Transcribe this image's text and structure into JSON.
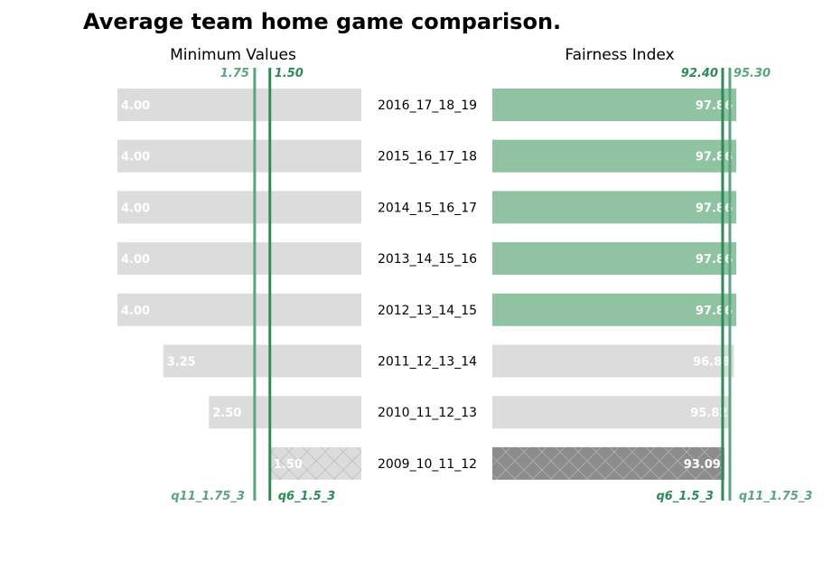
{
  "chart_data": {
    "type": "bar",
    "title": "Average team home game comparison.",
    "categories": [
      "2016_17_18_19",
      "2015_16_17_18",
      "2014_15_16_17",
      "2013_14_15_16",
      "2012_13_14_15",
      "2011_12_13_14",
      "2010_11_12_13",
      "2009_10_11_12"
    ],
    "panels": [
      {
        "subtitle": "Minimum Values",
        "direction": "right-to-left",
        "xlim": [
          0,
          5.3
        ],
        "values": [
          4.0,
          4.0,
          4.0,
          4.0,
          4.0,
          3.25,
          2.5,
          1.5
        ],
        "labels": [
          "4.00",
          "4.00",
          "4.00",
          "4.00",
          "4.00",
          "3.25",
          "2.50",
          "1.50"
        ],
        "highlight": [
          false,
          false,
          false,
          false,
          false,
          false,
          false,
          false
        ],
        "hatched": [
          false,
          false,
          false,
          false,
          false,
          false,
          false,
          true
        ],
        "reference_lines": [
          {
            "name": "q11_1.75_3",
            "value": 1.75,
            "value_label": "1.75",
            "color": "#5aa57d"
          },
          {
            "name": "q6_1.5_3",
            "value": 1.5,
            "value_label": "1.50",
            "color": "#2e8b57"
          }
        ]
      },
      {
        "subtitle": "Fairness Index",
        "direction": "left-to-right",
        "xlim": [
          0,
          100
        ],
        "values": [
          97.86,
          97.86,
          97.86,
          97.86,
          97.86,
          96.88,
          95.82,
          93.09
        ],
        "labels": [
          "97.86",
          "97.86",
          "97.86",
          "97.86",
          "97.86",
          "96.88",
          "95.82",
          "93.09"
        ],
        "highlight": [
          true,
          true,
          true,
          true,
          true,
          false,
          false,
          false
        ],
        "hatched": [
          false,
          false,
          false,
          false,
          false,
          false,
          false,
          true
        ],
        "reference_lines": [
          {
            "name": "q6_1.5_3",
            "value": 92.4,
            "value_label": "92.40",
            "color": "#2e8b57"
          },
          {
            "name": "q11_1.75_3",
            "value": 95.3,
            "value_label": "95.30",
            "color": "#5aa57d"
          }
        ]
      }
    ],
    "colors": {
      "bar": "#dcdcdc",
      "highlight_bar": "#8fc3a2",
      "hatched_bar_left": "#dcdcdc",
      "hatched_bar_right": "#8c8c8c",
      "bar_label": "#ffffff"
    },
    "grid": false
  }
}
